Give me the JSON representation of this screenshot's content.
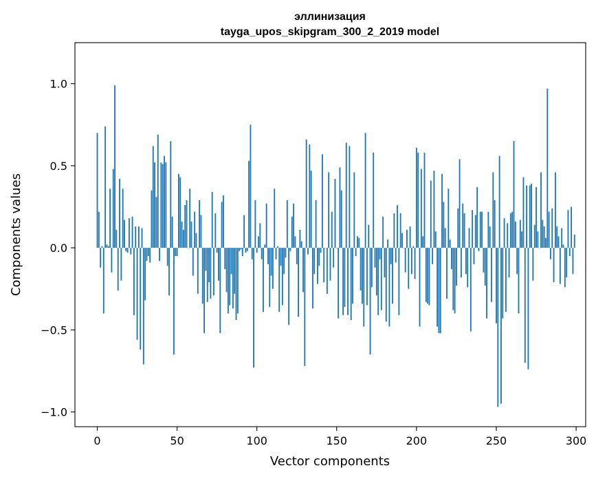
{
  "chart_data": {
    "type": "bar",
    "title": "эллинизация",
    "subtitle": "tayga_upos_skipgram_300_2_2019 model",
    "xlabel": "Vector components",
    "ylabel": "Components values",
    "xlim": [
      -14,
      306
    ],
    "ylim": [
      -1.09,
      1.25
    ],
    "xticks": [
      0,
      50,
      100,
      150,
      200,
      250,
      300
    ],
    "xtick_labels": [
      "0",
      "50",
      "100",
      "150",
      "200",
      "250",
      "300"
    ],
    "yticks": [
      -1.0,
      -0.5,
      0.0,
      0.5,
      1.0
    ],
    "ytick_labels": [
      "−1.0",
      "−0.5",
      "0.0",
      "0.5",
      "1.0"
    ],
    "grid": false,
    "color": "#1f77b4",
    "values": [
      0.7,
      0.22,
      -0.12,
      0.01,
      -0.4,
      0.74,
      0.02,
      0.01,
      0.36,
      -0.15,
      0.48,
      0.99,
      0.11,
      -0.26,
      0.42,
      -0.2,
      0.36,
      0.17,
      -0.02,
      -0.03,
      0.18,
      -0.04,
      0.19,
      -0.41,
      0.13,
      -0.56,
      0.13,
      -0.62,
      0.12,
      -0.71,
      -0.32,
      -0.08,
      -0.05,
      -0.09,
      0.35,
      0.62,
      0.52,
      0.31,
      0.69,
      -0.08,
      0.52,
      0.51,
      0.56,
      0.52,
      -0.11,
      -0.29,
      0.65,
      0.19,
      -0.65,
      -0.05,
      -0.05,
      0.45,
      0.43,
      0.16,
      0.11,
      0.26,
      0.29,
      0.0,
      0.36,
      0.16,
      -0.17,
      0.22,
      0.09,
      -0.28,
      0.29,
      0.2,
      -0.34,
      -0.52,
      -0.14,
      -0.33,
      -0.21,
      -0.31,
      0.34,
      -0.29,
      0.21,
      -0.03,
      -0.2,
      -0.52,
      0.28,
      0.32,
      -0.13,
      -0.27,
      -0.4,
      -0.35,
      -0.16,
      -0.37,
      -0.28,
      -0.44,
      -0.4,
      -0.02,
      -0.01,
      -0.05,
      0.2,
      -0.03,
      -0.02,
      0.53,
      0.75,
      -0.07,
      -0.73,
      0.29,
      -0.03,
      0.07,
      0.15,
      -0.07,
      -0.39,
      0.02,
      0.27,
      -0.1,
      -0.36,
      -0.17,
      -0.25,
      0.36,
      -0.07,
      0.01,
      -0.39,
      -0.11,
      -0.35,
      -0.16,
      -0.06,
      0.29,
      -0.47,
      -0.02,
      0.19,
      0.27,
      0.07,
      -0.1,
      -0.42,
      0.11,
      0.04,
      -0.27,
      -0.72,
      0.66,
      -0.04,
      0.63,
      0.47,
      -0.37,
      -0.16,
      0.29,
      -0.22,
      -0.11,
      -0.03,
      0.57,
      -0.21,
      0.0,
      -0.28,
      0.46,
      -0.2,
      0.22,
      -0.12,
      0.42,
      0.0,
      -0.43,
      0.49,
      0.35,
      -0.41,
      -0.36,
      0.64,
      -0.41,
      0.62,
      -0.44,
      -0.34,
      0.46,
      -0.05,
      0.07,
      0.06,
      -0.26,
      -0.34,
      -0.48,
      0.7,
      -0.35,
      0.14,
      -0.65,
      -0.24,
      0.58,
      -0.12,
      -0.29,
      -0.41,
      -0.07,
      -0.38,
      0.19,
      -0.18,
      -0.45,
      0.05,
      -0.48,
      -0.1,
      -0.34,
      0.21,
      -0.09,
      0.26,
      -0.41,
      0.21,
      0.09,
      0.0,
      -0.15,
      0.11,
      -0.25,
      0.13,
      -0.16,
      0.01,
      -0.19,
      0.61,
      0.58,
      -0.48,
      0.48,
      0.07,
      0.58,
      -0.33,
      -0.34,
      -0.35,
      0.41,
      -0.1,
      0.47,
      0.1,
      -0.48,
      -0.52,
      -0.52,
      0.45,
      0.28,
      0.12,
      -0.31,
      0.36,
      0.05,
      -0.13,
      -0.38,
      -0.4,
      -0.23,
      0.24,
      0.54,
      -0.18,
      0.27,
      0.21,
      -0.16,
      -0.24,
      0.12,
      -0.51,
      0.23,
      -0.1,
      0.2,
      0.37,
      -0.02,
      0.22,
      0.22,
      -0.15,
      -0.23,
      -0.43,
      0.22,
      0.13,
      -0.33,
      0.46,
      0.29,
      -0.46,
      -0.97,
      0.56,
      -0.95,
      -0.43,
      0.18,
      -0.39,
      0.15,
      -0.18,
      0.21,
      0.22,
      0.65,
      0.16,
      -0.16,
      -0.4,
      0.17,
      0.1,
      0.43,
      -0.7,
      0.38,
      -0.74,
      0.38,
      0.39,
      -0.2,
      0.14,
      0.37,
      0.1,
      0.0,
      0.46,
      0.17,
      0.13,
      0.06,
      0.97,
      0.22,
      -0.07,
      0.24,
      -0.21,
      0.46,
      0.13,
      0.07,
      -0.22,
      0.12,
      0.02,
      -0.24,
      -0.18,
      0.23,
      -0.05,
      0.25,
      -0.16,
      0.08
    ]
  }
}
